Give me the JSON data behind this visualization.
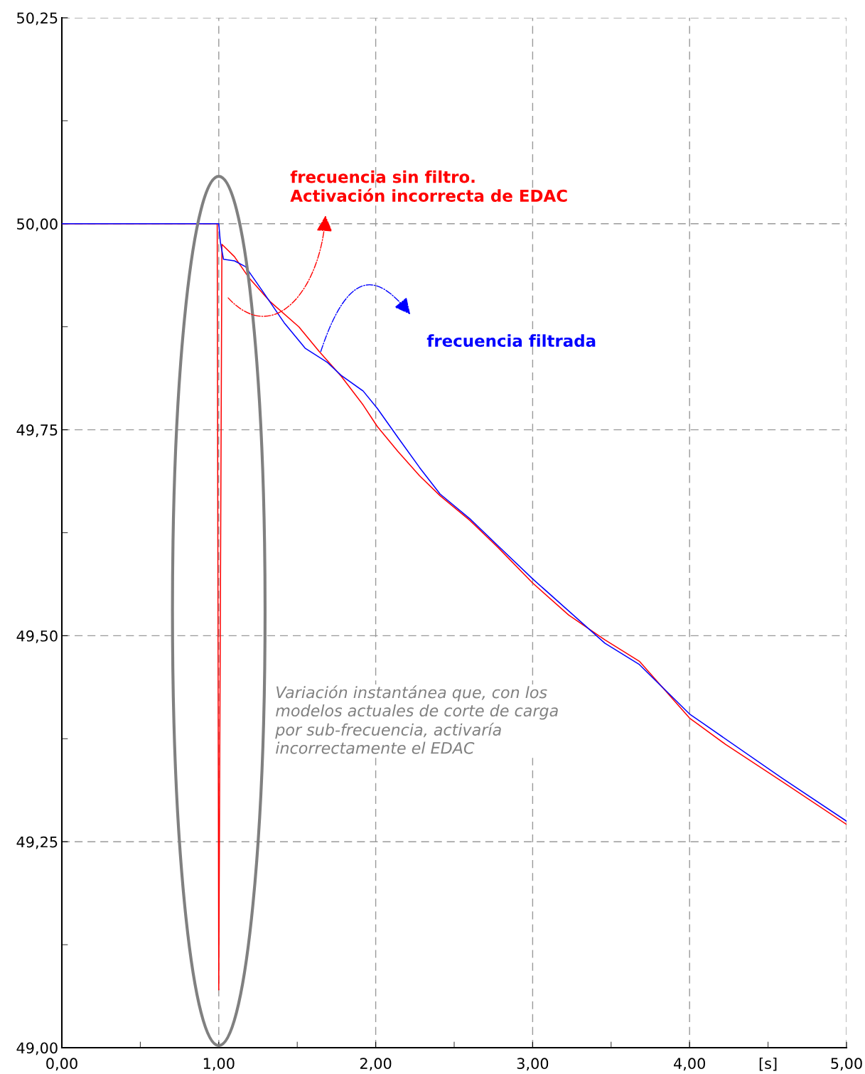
{
  "chart_data": {
    "type": "line",
    "xlim": [
      0,
      5
    ],
    "ylim": [
      49.0,
      50.25
    ],
    "xticks": [
      {
        "value": 0,
        "label": "0,00"
      },
      {
        "value": 0.5,
        "label": null
      },
      {
        "value": 1,
        "label": "1,00"
      },
      {
        "value": 1.5,
        "label": null
      },
      {
        "value": 2,
        "label": "2,00"
      },
      {
        "value": 2.5,
        "label": null
      },
      {
        "value": 3,
        "label": "3,00"
      },
      {
        "value": 3.5,
        "label": null
      },
      {
        "value": 4,
        "label": "4,00"
      },
      {
        "value": 4.5,
        "label": "[s]"
      },
      {
        "value": 5,
        "label": "5,00"
      }
    ],
    "yticks": [
      {
        "value": 49.0,
        "label": "49,00"
      },
      {
        "value": 49.125,
        "label": null
      },
      {
        "value": 49.25,
        "label": "49,25"
      },
      {
        "value": 49.375,
        "label": null
      },
      {
        "value": 49.5,
        "label": "49,50"
      },
      {
        "value": 49.625,
        "label": null
      },
      {
        "value": 49.75,
        "label": "49,75"
      },
      {
        "value": 49.875,
        "label": null
      },
      {
        "value": 50.0,
        "label": "50,00"
      },
      {
        "value": 50.125,
        "label": null
      },
      {
        "value": 50.25,
        "label": "50,25"
      }
    ],
    "grid": true,
    "line_style": "solid",
    "marker": "none",
    "series": [
      {
        "color": "#ff0000",
        "x": [
          0,
          0.99,
          1.0,
          1.02,
          1.1,
          1.19,
          1.33,
          1.51,
          1.64,
          1.78,
          1.92,
          2.01,
          2.14,
          2.28,
          2.41,
          2.6,
          2.78,
          3.0,
          3.23,
          3.46,
          3.68,
          4.0,
          4.23,
          4.59,
          5.0
        ],
        "values": [
          50.0,
          50.0,
          49.07,
          49.975,
          49.96,
          49.935,
          49.905,
          49.875,
          49.845,
          49.815,
          49.78,
          49.754,
          49.724,
          49.694,
          49.67,
          49.64,
          49.607,
          49.564,
          49.525,
          49.495,
          49.469,
          49.4,
          49.368,
          49.323,
          49.271
        ]
      },
      {
        "color": "#0000ff",
        "x": [
          0,
          1.0,
          1.01,
          1.03,
          1.1,
          1.17,
          1.28,
          1.42,
          1.55,
          1.69,
          1.78,
          1.92,
          2.01,
          2.14,
          2.28,
          2.41,
          2.6,
          2.78,
          3.0,
          3.23,
          3.46,
          3.68,
          4.0,
          4.59,
          5.0
        ],
        "values": [
          50.0,
          50.0,
          49.978,
          49.957,
          49.955,
          49.948,
          49.918,
          49.879,
          49.849,
          49.832,
          49.816,
          49.797,
          49.776,
          49.741,
          49.704,
          49.672,
          49.642,
          49.609,
          49.569,
          49.53,
          49.491,
          49.465,
          49.405,
          49.327,
          49.275
        ]
      }
    ],
    "annotations": [
      "frecuencia sin filtro.\nActivación incorrecta de EDAC",
      "frecuencia filtrada",
      "Variación instantánea que, con los\nmodelos actuales de corte de carga\npor sub-frecuencia, activaría\nincorrectamente el EDAC"
    ]
  }
}
